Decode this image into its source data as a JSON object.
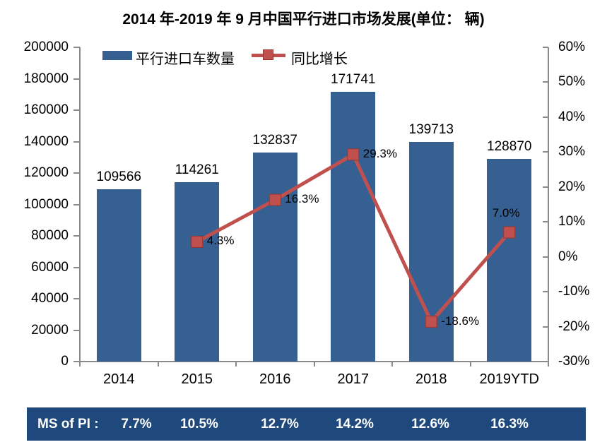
{
  "chart_data": {
    "type": "bar",
    "title": "2014 年-2019 年 9 月中国平行进口市场发展(单位： 辆)",
    "categories": [
      "2014",
      "2015",
      "2016",
      "2017",
      "2018",
      "2019YTD"
    ],
    "series": [
      {
        "name": "平行进口车数量",
        "kind": "bar",
        "axis": "left",
        "color": "#366092",
        "values": [
          109566,
          114261,
          132837,
          171741,
          139713,
          128870
        ],
        "labels": [
          "109566",
          "114261",
          "132837",
          "171741",
          "139713",
          "128870"
        ]
      },
      {
        "name": "同比增长",
        "kind": "line",
        "axis": "right",
        "color": "#C0504D",
        "marker": "square",
        "marker_border_color": "#943634",
        "values": [
          null,
          4.3,
          16.3,
          29.3,
          -18.6,
          7.0
        ],
        "labels": [
          null,
          "4.3%",
          "16.3%",
          "29.3%",
          "-18.6%",
          "7.0%"
        ]
      }
    ],
    "left_axis": {
      "min": 0,
      "max": 200000,
      "step": 20000,
      "tick_labels": [
        "200000",
        "180000",
        "160000",
        "140000",
        "120000",
        "100000",
        "80000",
        "60000",
        "40000",
        "20000",
        "0"
      ]
    },
    "right_axis": {
      "min": -30,
      "max": 60,
      "step": 10,
      "tick_labels": [
        "60%",
        "50%",
        "40%",
        "30%",
        "20%",
        "10%",
        "0%",
        "-10%",
        "-20%",
        "-30%"
      ]
    },
    "grid": false,
    "legend_position": "top-left"
  },
  "ms_row": {
    "label": "MS of PI :",
    "values": [
      "7.7%",
      "10.5%",
      "12.7%",
      "14.2%",
      "12.6%",
      "16.3%"
    ]
  },
  "colors": {
    "bar": "#366092",
    "line": "#C0504D",
    "line_marker_border": "#943634",
    "banner_bg": "#1F497D",
    "banner_text": "#FFFFFF",
    "axis": "#8a8a8a",
    "text": "#000000"
  }
}
